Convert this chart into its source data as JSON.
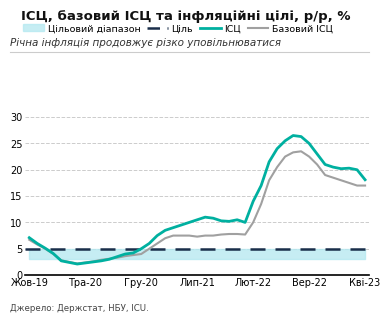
{
  "title": "ІСЦ, базовий ІСЦ та інфляційні цілі, р/р, %",
  "subtitle": "Річна інфляція продовжує різко уповільнюватися",
  "source": "Джерело: Держстат, НБУ, ICU.",
  "x_labels": [
    "Жов-19",
    "Тра-20",
    "Гру-20",
    "Лип-21",
    "Лют-22",
    "Вер-22",
    "Кві-23"
  ],
  "x_ticks_positions": [
    0,
    7,
    14,
    21,
    28,
    35,
    42
  ],
  "ylim": [
    0,
    30
  ],
  "yticks": [
    0,
    5,
    10,
    15,
    20,
    25,
    30
  ],
  "target_band_lower": 3,
  "target_band_upper": 5,
  "target_line": 5,
  "cpi_data": {
    "x": [
      0,
      1,
      2,
      3,
      4,
      5,
      6,
      7,
      8,
      9,
      10,
      11,
      12,
      13,
      14,
      15,
      16,
      17,
      18,
      19,
      20,
      21,
      22,
      23,
      24,
      25,
      26,
      27,
      28,
      29,
      30,
      31,
      32,
      33,
      34,
      35,
      36,
      37,
      38,
      39,
      40,
      41,
      42
    ],
    "y": [
      7.1,
      6.0,
      5.1,
      4.1,
      2.7,
      2.4,
      2.1,
      2.3,
      2.5,
      2.7,
      3.0,
      3.5,
      4.0,
      4.2,
      5.0,
      6.0,
      7.5,
      8.5,
      9.0,
      9.5,
      10.0,
      10.5,
      11.0,
      10.8,
      10.3,
      10.2,
      10.5,
      10.0,
      14.0,
      17.0,
      21.5,
      24.0,
      25.5,
      26.5,
      26.3,
      25.0,
      23.0,
      21.0,
      20.5,
      20.2,
      20.3,
      20.0,
      18.1
    ]
  },
  "core_cpi_data": {
    "x": [
      0,
      1,
      2,
      3,
      4,
      5,
      6,
      7,
      8,
      9,
      10,
      11,
      12,
      13,
      14,
      15,
      16,
      17,
      18,
      19,
      20,
      21,
      22,
      23,
      24,
      25,
      26,
      27,
      28,
      29,
      30,
      31,
      32,
      33,
      34,
      35,
      36,
      37,
      38,
      39,
      40,
      41,
      42
    ],
    "y": [
      6.7,
      5.8,
      5.0,
      4.0,
      2.8,
      2.5,
      2.2,
      2.4,
      2.6,
      2.9,
      3.1,
      3.3,
      3.6,
      3.8,
      4.0,
      5.0,
      6.0,
      7.0,
      7.5,
      7.5,
      7.5,
      7.3,
      7.5,
      7.5,
      7.7,
      7.8,
      7.8,
      7.7,
      10.0,
      13.5,
      18.0,
      20.5,
      22.5,
      23.3,
      23.5,
      22.5,
      21.0,
      19.0,
      18.5,
      18.0,
      17.5,
      17.0,
      17.0
    ]
  },
  "cpi_color": "#00b0a0",
  "core_cpi_color": "#a0a0a0",
  "target_line_color": "#1a2e4a",
  "target_band_color": "#b3e8f0",
  "background_color": "#ffffff",
  "legend_labels": [
    "Цільовий діапазон",
    "Ціль",
    "ІСЦ",
    "Базовий ІСЦ"
  ],
  "title_fontsize": 9.5,
  "subtitle_fontsize": 7.5,
  "axis_fontsize": 7,
  "legend_fontsize": 6.8
}
